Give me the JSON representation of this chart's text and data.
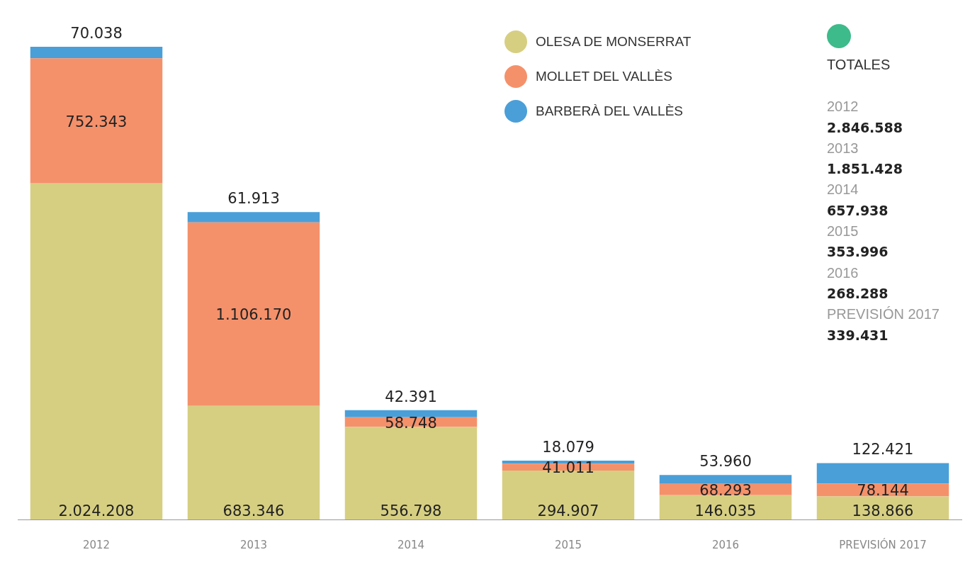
{
  "chart_data": {
    "type": "bar",
    "stacked": true,
    "legend": "top right",
    "tick_labels": "x",
    "grid": false,
    "categories": [
      "2012",
      "2013",
      "2014",
      "2015",
      "2016",
      "PREVISIÓN 2017"
    ],
    "series": [
      {
        "name": "OLESA DE MONSERRAT",
        "color": "#d6cf82",
        "values": [
          2024208,
          683346,
          556798,
          294907,
          146035,
          138866
        ],
        "value_labels": [
          "2.024.208",
          "683.346",
          "556.798",
          "294.907",
          "146.035",
          "138.866"
        ]
      },
      {
        "name": "MOLLET DEL VALLÈS",
        "color": "#f4916b",
        "values": [
          752343,
          1106170,
          58748,
          41011,
          68293,
          78144
        ],
        "value_labels": [
          "752.343",
          "1.106.170",
          "58.748",
          "41.011",
          "68.293",
          "78.144"
        ]
      },
      {
        "name": "BARBERÀ DEL VALLÈS",
        "color": "#4a9fd8",
        "values": [
          70038,
          61913,
          42391,
          18079,
          53960,
          122421
        ],
        "value_labels": [
          "70.038",
          "61.913",
          "42.391",
          "18.079",
          "53.960",
          "122.421"
        ]
      }
    ],
    "annotations": [
      "TOTALES",
      "2012",
      "2.846.588",
      "2013",
      "1.851.428",
      "2014",
      "657.938",
      "2015",
      "353.996",
      "2016",
      "268.288",
      "PREVISIÓN 2017",
      "339.431"
    ]
  }
}
